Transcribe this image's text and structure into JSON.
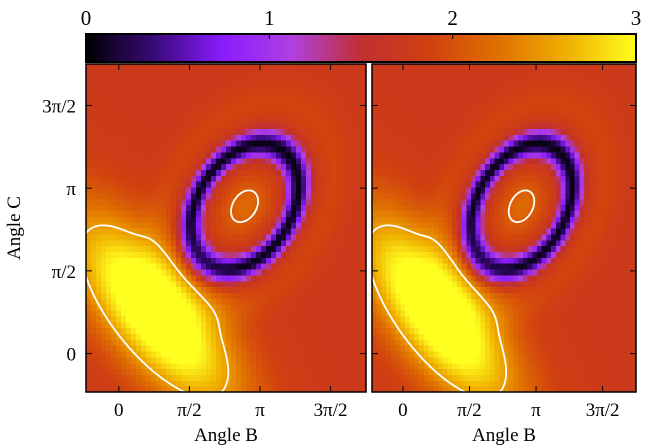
{
  "chart_data": {
    "type": "heatmap",
    "colorbar": {
      "range": [
        0,
        3
      ],
      "ticks": [
        0,
        1,
        2,
        3
      ],
      "tick_labels": [
        "0",
        "1",
        "2",
        "3"
      ],
      "colormap": [
        "#000000",
        "#3a0a7a",
        "#8a1cff",
        "#b040e0",
        "#c03030",
        "#d04010",
        "#e07000",
        "#f0b000",
        "#ffff20"
      ],
      "position": "top"
    },
    "x_ticks": {
      "values": [
        0,
        1.5708,
        3.1416,
        4.7124
      ],
      "labels": [
        "0",
        "π/2",
        "π",
        "3π/2"
      ]
    },
    "y_ticks": {
      "values": [
        0,
        1.5708,
        3.1416,
        4.7124
      ],
      "labels": [
        "0",
        "π/2",
        "π",
        "3π/2"
      ]
    },
    "panels": [
      {
        "id": "left",
        "xlabel": "Angle B",
        "ylabel": "Angle C",
        "xlim": [
          -0.73,
          5.5
        ],
        "ylim": [
          -0.73,
          5.5
        ],
        "hot_spot": {
          "center": [
            0.8,
            0.8
          ],
          "contour_level": 2.5
        },
        "inner_spot": {
          "center": [
            2.8,
            2.8
          ],
          "contour_level": 2.1
        },
        "dark_ring": {
          "center": [
            2.8,
            2.8
          ]
        },
        "contour_color": "#ffffff"
      },
      {
        "id": "right",
        "xlabel": "Angle B",
        "ylabel": "",
        "xlim": [
          -0.73,
          5.5
        ],
        "ylim": [
          -0.73,
          5.5
        ],
        "hot_spot": {
          "center": [
            0.8,
            0.8
          ],
          "contour_level": 2.5
        },
        "inner_spot": {
          "center": [
            2.8,
            2.8
          ],
          "contour_level": 2.1
        },
        "dark_ring": {
          "center": [
            2.8,
            2.8
          ]
        },
        "contour_color": "#ffffff"
      }
    ]
  }
}
